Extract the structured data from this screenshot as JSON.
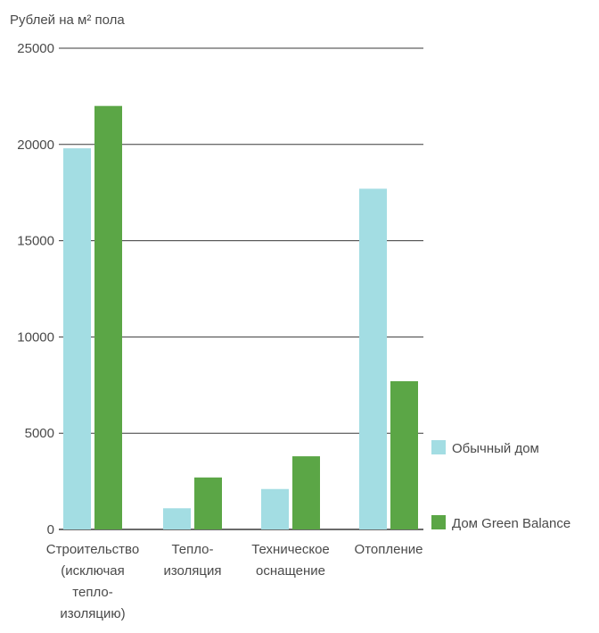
{
  "chart_data": {
    "type": "bar",
    "ylabel": "Рублей на м² пола",
    "ylim": [
      0,
      25000
    ],
    "yticks": [
      0,
      5000,
      10000,
      15000,
      20000,
      25000
    ],
    "grid": true,
    "legend_position": "right",
    "categories": [
      "Строительство (исключая тепло- изоляцию)",
      "Тепло- изоляция",
      "Техническое оснащение",
      "Отопление"
    ],
    "category_lines": [
      [
        "Строительство",
        "(исключая",
        "тепло-",
        "изоляцию)"
      ],
      [
        "Тепло-",
        "изоляция"
      ],
      [
        "Техническое",
        "оснащение"
      ],
      [
        "Отопление"
      ]
    ],
    "series": [
      {
        "name": "Обычный дом",
        "color": "#a3dde3",
        "values": [
          19800,
          1100,
          2100,
          17700
        ]
      },
      {
        "name": "Дом Green Balance",
        "color": "#5ba646",
        "values": [
          22000,
          2700,
          3800,
          7700
        ]
      }
    ]
  }
}
